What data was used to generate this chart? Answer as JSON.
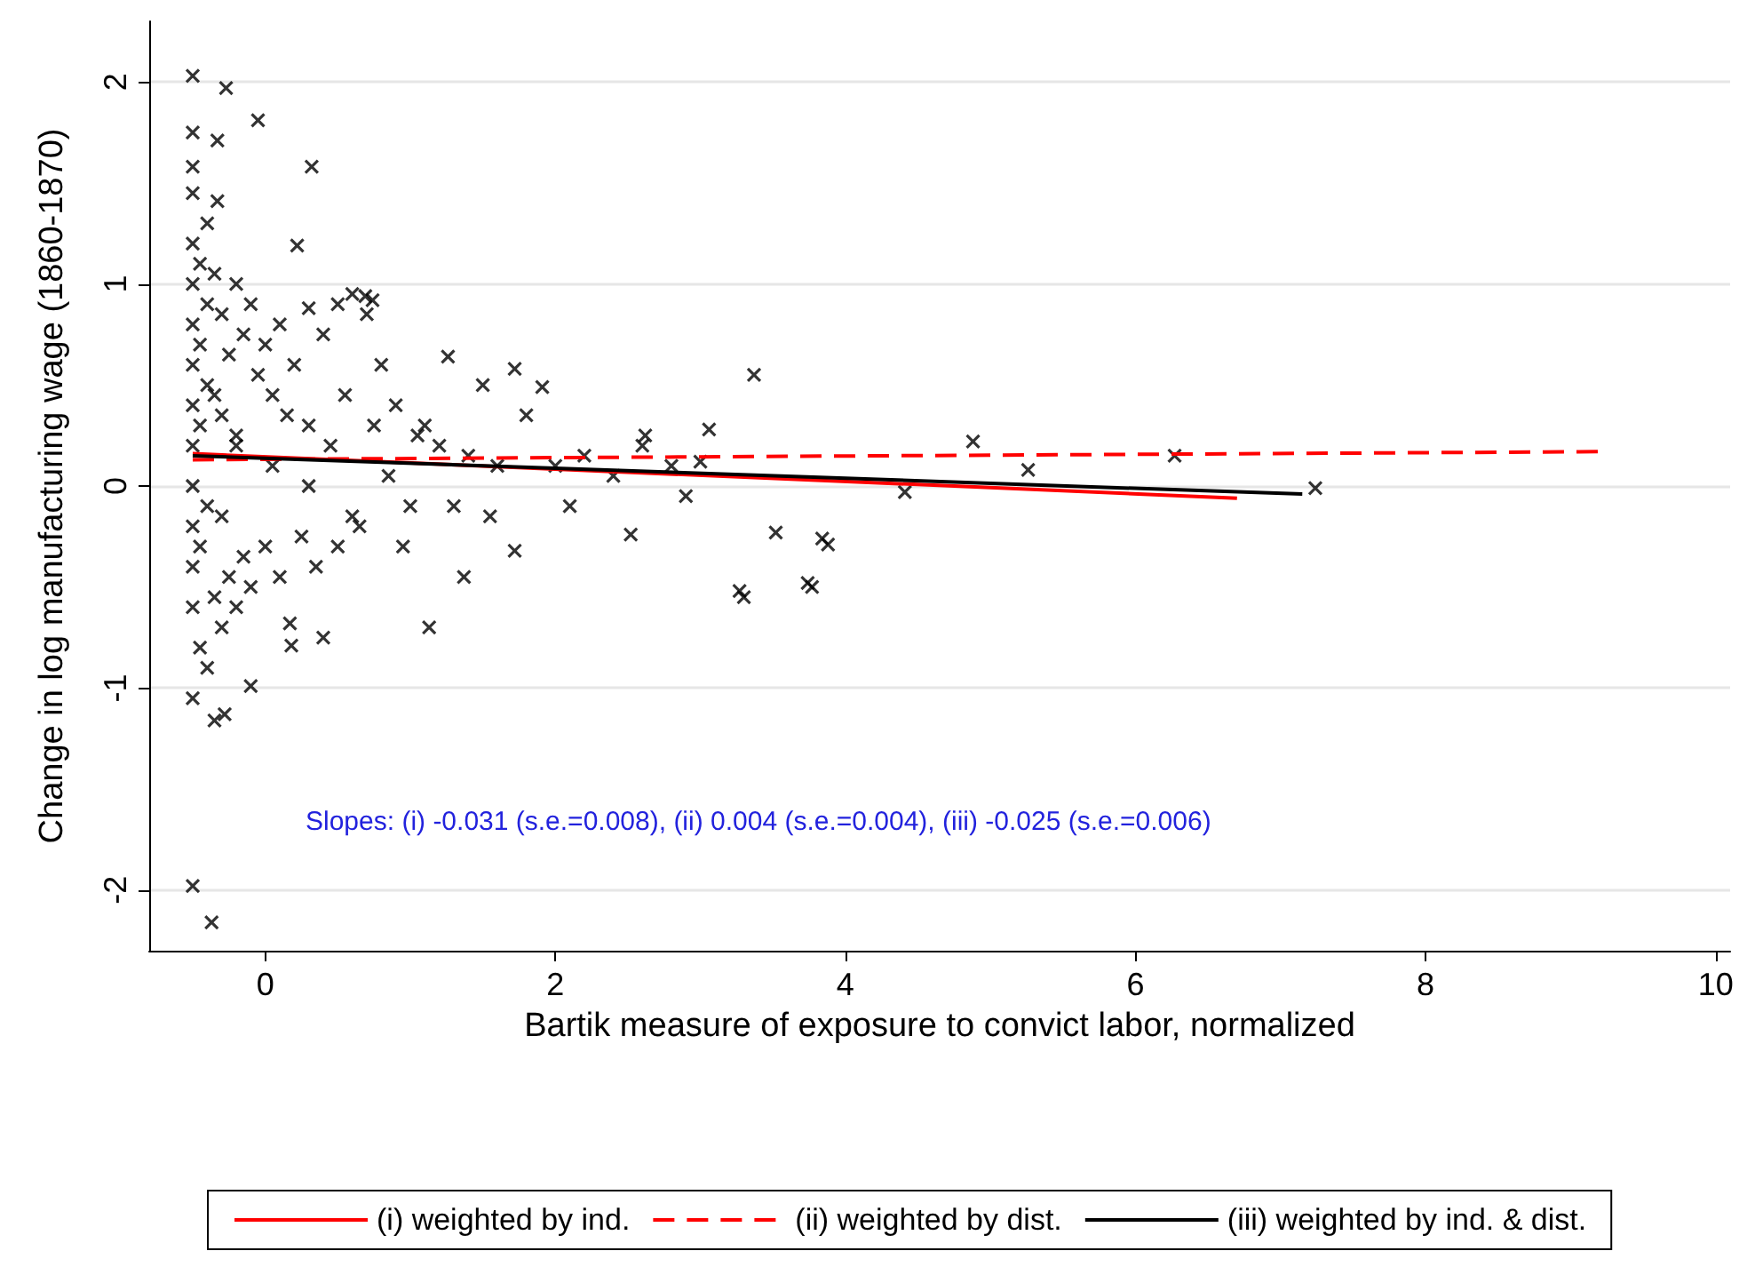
{
  "chart_data": {
    "type": "scatter",
    "xlabel": "Bartik measure of exposure to convict labor, normalized",
    "ylabel": "Change in log manufacturing wage (1860-1870)",
    "annotations": [
      "Slopes: (i) -0.031 (s.e.=0.008), (ii) 0.004 (s.e.=0.004), (iii) -0.025 (s.e.=0.006)"
    ],
    "xlim": [
      -0.8,
      10.1
    ],
    "ylim": [
      -2.3,
      2.3
    ],
    "xticks": [
      0,
      2,
      4,
      6,
      8,
      10
    ],
    "yticks": [
      -2,
      -1,
      0,
      1,
      2
    ],
    "grid": "y",
    "legend": "bottom",
    "series": [
      {
        "marker": "cross",
        "color": "#000000",
        "x": [
          -0.5,
          -0.5,
          -0.27,
          -0.05,
          -0.5,
          -0.33,
          -0.5,
          -0.33,
          0.32,
          0.22,
          -0.5,
          -0.37,
          -0.35,
          -0.28,
          -0.5,
          -0.1,
          0.18,
          0.4,
          1.13,
          0.17,
          1.26,
          1.72,
          1.91,
          3.37,
          1.37,
          1.72,
          2.52,
          3.27,
          3.74,
          3.52,
          3.84,
          3.06,
          2.62,
          0.74,
          0.69,
          4.88,
          6.27,
          7.24,
          5.26,
          4.41,
          3.3,
          3.77,
          3.88,
          -0.5,
          -0.5,
          -0.5,
          -0.5,
          -0.5,
          -0.5,
          -0.5,
          -0.5,
          -0.5,
          -0.5,
          -0.45,
          -0.45,
          -0.45,
          -0.45,
          -0.45,
          -0.4,
          -0.4,
          -0.4,
          -0.4,
          -0.4,
          -0.35,
          -0.35,
          -0.35,
          -0.3,
          -0.3,
          -0.3,
          -0.3,
          -0.25,
          -0.25,
          -0.2,
          -0.2,
          -0.2,
          -0.15,
          -0.15,
          -0.1,
          -0.1,
          -0.05,
          0,
          0,
          0.05,
          0.1,
          0.1,
          0.15,
          0.2,
          0.25,
          0.3,
          0.3,
          0.35,
          0.4,
          0.45,
          0.5,
          0.5,
          0.55,
          0.6,
          0.65,
          0.7,
          0.75,
          0.8,
          0.85,
          0.9,
          1.0,
          1.05,
          1.1,
          1.2,
          1.3,
          1.4,
          1.5,
          1.6,
          1.8,
          2.0,
          2.2,
          2.4,
          2.6,
          2.8,
          3.0,
          2.9,
          2.1,
          1.55,
          0.95,
          0.6,
          0.3,
          0.05,
          -0.2
        ],
        "values": [
          2.03,
          1.75,
          1.97,
          1.81,
          1.58,
          1.71,
          1.45,
          1.41,
          1.58,
          1.19,
          -1.98,
          -2.16,
          -1.16,
          -1.13,
          -1.05,
          -0.99,
          -0.79,
          -0.75,
          -0.7,
          -0.68,
          0.64,
          0.58,
          0.49,
          0.55,
          -0.45,
          -0.32,
          -0.24,
          -0.52,
          -0.48,
          -0.23,
          -0.26,
          0.28,
          0.25,
          0.92,
          0.94,
          0.22,
          0.15,
          -0.01,
          0.08,
          -0.03,
          -0.55,
          -0.5,
          -0.29,
          1.2,
          1.0,
          0.8,
          0.6,
          0.4,
          0.2,
          0,
          -0.2,
          -0.4,
          -0.6,
          1.1,
          0.7,
          0.3,
          -0.3,
          -0.8,
          1.3,
          0.9,
          0.5,
          -0.1,
          -0.9,
          1.05,
          0.45,
          -0.55,
          0.85,
          0.35,
          -0.15,
          -0.7,
          0.65,
          -0.45,
          1.0,
          0.25,
          -0.6,
          0.75,
          -0.35,
          0.9,
          -0.5,
          0.55,
          0.7,
          -0.3,
          0.45,
          0.8,
          -0.45,
          0.35,
          0.6,
          -0.25,
          0.88,
          0.3,
          -0.4,
          0.75,
          0.2,
          0.9,
          -0.3,
          0.45,
          0.95,
          -0.2,
          0.85,
          0.3,
          0.6,
          0.05,
          0.4,
          -0.1,
          0.25,
          0.3,
          0.2,
          -0.1,
          0.15,
          0.5,
          0.1,
          0.35,
          0.1,
          0.15,
          0.05,
          0.2,
          0.1,
          0.12,
          -0.05,
          -0.1,
          -0.15,
          -0.3,
          -0.15,
          0,
          0.1,
          0.2
        ]
      },
      {
        "type": "line",
        "name": "(i) weighted by ind.",
        "color": "#ff0000",
        "line_style": "solid",
        "marker": "none",
        "x": [
          -0.5,
          6.7
        ],
        "values": [
          0.16,
          -0.06
        ]
      },
      {
        "type": "line",
        "name": "(ii) weighted by dist.",
        "color": "#ff0000",
        "line_style": "dashed",
        "marker": "none",
        "x": [
          -0.5,
          9.2
        ],
        "values": [
          0.13,
          0.17
        ]
      },
      {
        "type": "line",
        "name": "(iii) weighted by ind. & dist.",
        "color": "#000000",
        "line_style": "solid",
        "marker": "none",
        "x": [
          -0.5,
          7.15
        ],
        "values": [
          0.15,
          -0.04
        ]
      }
    ]
  }
}
